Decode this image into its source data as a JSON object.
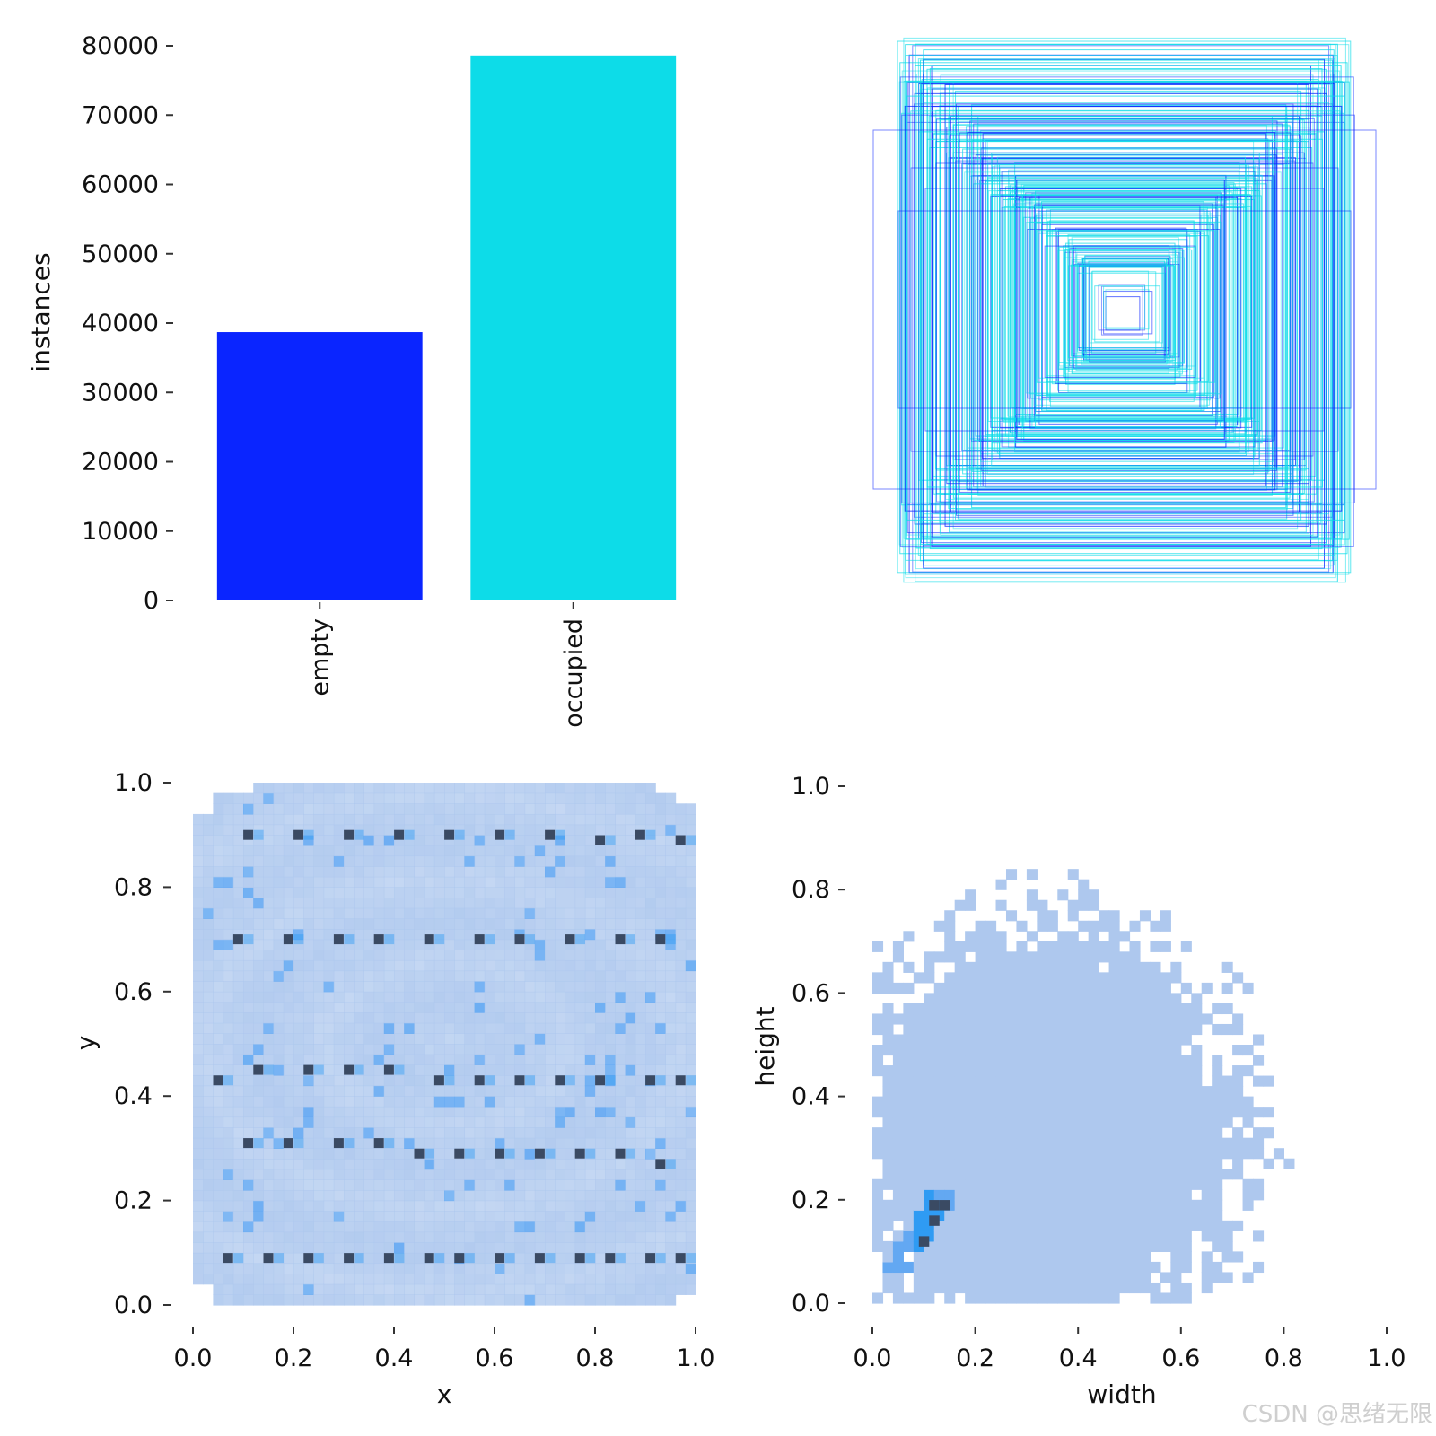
{
  "watermark": "CSDN @思绪无限",
  "colors": {
    "empty": "#0a25ff",
    "occupied": "#0ddce8",
    "hist_light": "#aec8ee",
    "hist_mid": "#63a8f2",
    "hist_dark": "#2f9bf3",
    "hist_darkest": "#3a4a63",
    "axis": "#333333"
  },
  "chart_data": [
    {
      "type": "bar",
      "title": "",
      "xlabel": "",
      "ylabel": "instances",
      "ylim": [
        0,
        80000
      ],
      "yticks": [
        0,
        10000,
        20000,
        30000,
        40000,
        50000,
        60000,
        70000,
        80000
      ],
      "ytick_labels": [
        "0",
        "10000",
        "20000",
        "30000",
        "40000",
        "50000",
        "60000",
        "70000",
        "80000"
      ],
      "categories": [
        "empty",
        "occupied"
      ],
      "values": [
        38700,
        78600
      ],
      "bar_colors": [
        "#0a25ff",
        "#0ddce8"
      ],
      "grid": false
    },
    {
      "type": "rectangles",
      "title": "",
      "note_colors": [
        "#0a25ff",
        "#0ddce8"
      ],
      "axes_visible": false
    },
    {
      "type": "heatmap",
      "title": "",
      "xlabel": "x",
      "ylabel": "y",
      "xlim": [
        0,
        1
      ],
      "ylim": [
        0,
        1
      ],
      "xticks": [
        "0.0",
        "0.2",
        "0.4",
        "0.6",
        "0.8",
        "1.0"
      ],
      "yticks": [
        "0.0",
        "0.2",
        "0.4",
        "0.6",
        "0.8",
        "1.0"
      ],
      "dense_points": [
        [
          0.11,
          0.9
        ],
        [
          0.21,
          0.9
        ],
        [
          0.31,
          0.9
        ],
        [
          0.41,
          0.9
        ],
        [
          0.51,
          0.9
        ],
        [
          0.61,
          0.9
        ],
        [
          0.71,
          0.9
        ],
        [
          0.81,
          0.89
        ],
        [
          0.89,
          0.9
        ],
        [
          0.97,
          0.89
        ],
        [
          0.09,
          0.7
        ],
        [
          0.19,
          0.7
        ],
        [
          0.29,
          0.7
        ],
        [
          0.37,
          0.7
        ],
        [
          0.47,
          0.7
        ],
        [
          0.57,
          0.7
        ],
        [
          0.65,
          0.7
        ],
        [
          0.75,
          0.7
        ],
        [
          0.85,
          0.7
        ],
        [
          0.93,
          0.7
        ],
        [
          0.05,
          0.43
        ],
        [
          0.13,
          0.45
        ],
        [
          0.23,
          0.45
        ],
        [
          0.31,
          0.45
        ],
        [
          0.39,
          0.45
        ],
        [
          0.49,
          0.43
        ],
        [
          0.57,
          0.43
        ],
        [
          0.65,
          0.43
        ],
        [
          0.73,
          0.43
        ],
        [
          0.81,
          0.43
        ],
        [
          0.91,
          0.43
        ],
        [
          0.97,
          0.43
        ],
        [
          0.11,
          0.31
        ],
        [
          0.19,
          0.31
        ],
        [
          0.29,
          0.31
        ],
        [
          0.37,
          0.31
        ],
        [
          0.45,
          0.29
        ],
        [
          0.53,
          0.29
        ],
        [
          0.61,
          0.29
        ],
        [
          0.69,
          0.29
        ],
        [
          0.77,
          0.29
        ],
        [
          0.85,
          0.29
        ],
        [
          0.93,
          0.27
        ],
        [
          0.07,
          0.09
        ],
        [
          0.15,
          0.09
        ],
        [
          0.23,
          0.09
        ],
        [
          0.31,
          0.09
        ],
        [
          0.39,
          0.09
        ],
        [
          0.47,
          0.09
        ],
        [
          0.53,
          0.09
        ],
        [
          0.61,
          0.09
        ],
        [
          0.69,
          0.09
        ],
        [
          0.77,
          0.09
        ],
        [
          0.83,
          0.09
        ],
        [
          0.91,
          0.09
        ],
        [
          0.97,
          0.09
        ]
      ],
      "grid": false
    },
    {
      "type": "heatmap",
      "title": "",
      "xlabel": "width",
      "ylabel": "height",
      "xlim": [
        0,
        1
      ],
      "ylim": [
        0,
        1
      ],
      "xticks": [
        "0.0",
        "0.2",
        "0.4",
        "0.6",
        "0.8",
        "1.0"
      ],
      "yticks": [
        "0.0",
        "0.2",
        "0.4",
        "0.6",
        "0.8",
        "1.0"
      ],
      "peak": {
        "width": 0.11,
        "height": 0.15
      },
      "grid": false
    }
  ]
}
